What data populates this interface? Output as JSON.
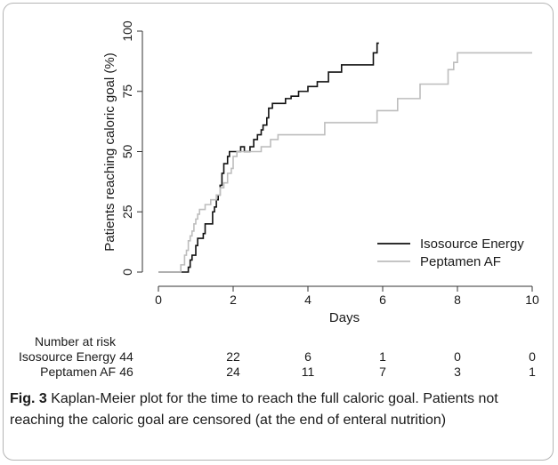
{
  "chart_data": {
    "type": "line",
    "step": true,
    "xlabel": "Days",
    "ylabel": "Patients reaching caloric goal (%)",
    "xlim": [
      0,
      10
    ],
    "ylim": [
      0,
      100
    ],
    "xticks": [
      0,
      2,
      4,
      6,
      8,
      10
    ],
    "yticks": [
      0,
      25,
      50,
      75,
      100
    ],
    "grid": false,
    "legend_position": "bottom-right",
    "series": [
      {
        "name": "Isosource Energy",
        "color": "#111111",
        "x": [
          0,
          0.8,
          0.85,
          0.9,
          1.0,
          1.05,
          1.2,
          1.25,
          1.45,
          1.5,
          1.55,
          1.6,
          1.65,
          1.7,
          1.75,
          1.85,
          1.9,
          1.95,
          2.0,
          2.2,
          2.3,
          2.45,
          2.55,
          2.65,
          2.75,
          2.8,
          2.9,
          2.95,
          3.05,
          3.2,
          3.4,
          3.55,
          3.75,
          4.0,
          4.25,
          4.55,
          4.7,
          4.9,
          5.05,
          5.2,
          5.3,
          5.5,
          5.75,
          5.85,
          5.9
        ],
        "y": [
          0,
          2,
          5,
          7,
          11,
          14,
          16,
          20,
          25,
          27,
          30,
          32,
          36,
          41,
          45,
          48,
          50,
          50,
          50,
          52,
          50,
          52,
          55,
          57,
          59,
          61,
          64,
          68,
          70,
          70,
          72,
          73,
          75,
          77,
          79,
          83,
          83,
          86,
          86,
          86,
          86,
          86,
          91,
          95,
          95
        ]
      },
      {
        "name": "Peptamen AF",
        "color": "#bdbdbd",
        "x": [
          0,
          0.6,
          0.7,
          0.75,
          0.8,
          0.85,
          0.9,
          0.95,
          1.0,
          1.05,
          1.1,
          1.25,
          1.4,
          1.55,
          1.65,
          1.75,
          1.85,
          1.95,
          2.0,
          2.1,
          2.45,
          2.75,
          3.0,
          3.2,
          4.45,
          4.7,
          5.85,
          6.4,
          7.0,
          7.75,
          7.9,
          8.0,
          10.0
        ],
        "y": [
          0,
          3,
          7,
          9,
          13,
          15,
          17,
          20,
          22,
          24,
          26,
          28,
          30,
          32,
          35,
          37,
          41,
          43,
          48,
          50,
          50,
          52,
          55,
          57,
          62,
          62,
          67,
          72,
          78,
          84,
          87,
          91,
          91
        ]
      }
    ],
    "risk_table": {
      "title": "Number at risk",
      "times": [
        0,
        2,
        4,
        6,
        8,
        10
      ],
      "rows": [
        {
          "label": "Isosource Energy",
          "values": [
            "44",
            "22",
            "6",
            "1",
            "0",
            "0"
          ]
        },
        {
          "label": "Peptamen AF",
          "values": [
            "46",
            "24",
            "11",
            "7",
            "3",
            "1"
          ]
        }
      ]
    }
  },
  "caption": {
    "label": "Fig. 3",
    "text": " Kaplan-Meier plot for the time to reach the full caloric goal. Patients not reaching the caloric goal are censored (at the end of enteral nutrition)"
  }
}
